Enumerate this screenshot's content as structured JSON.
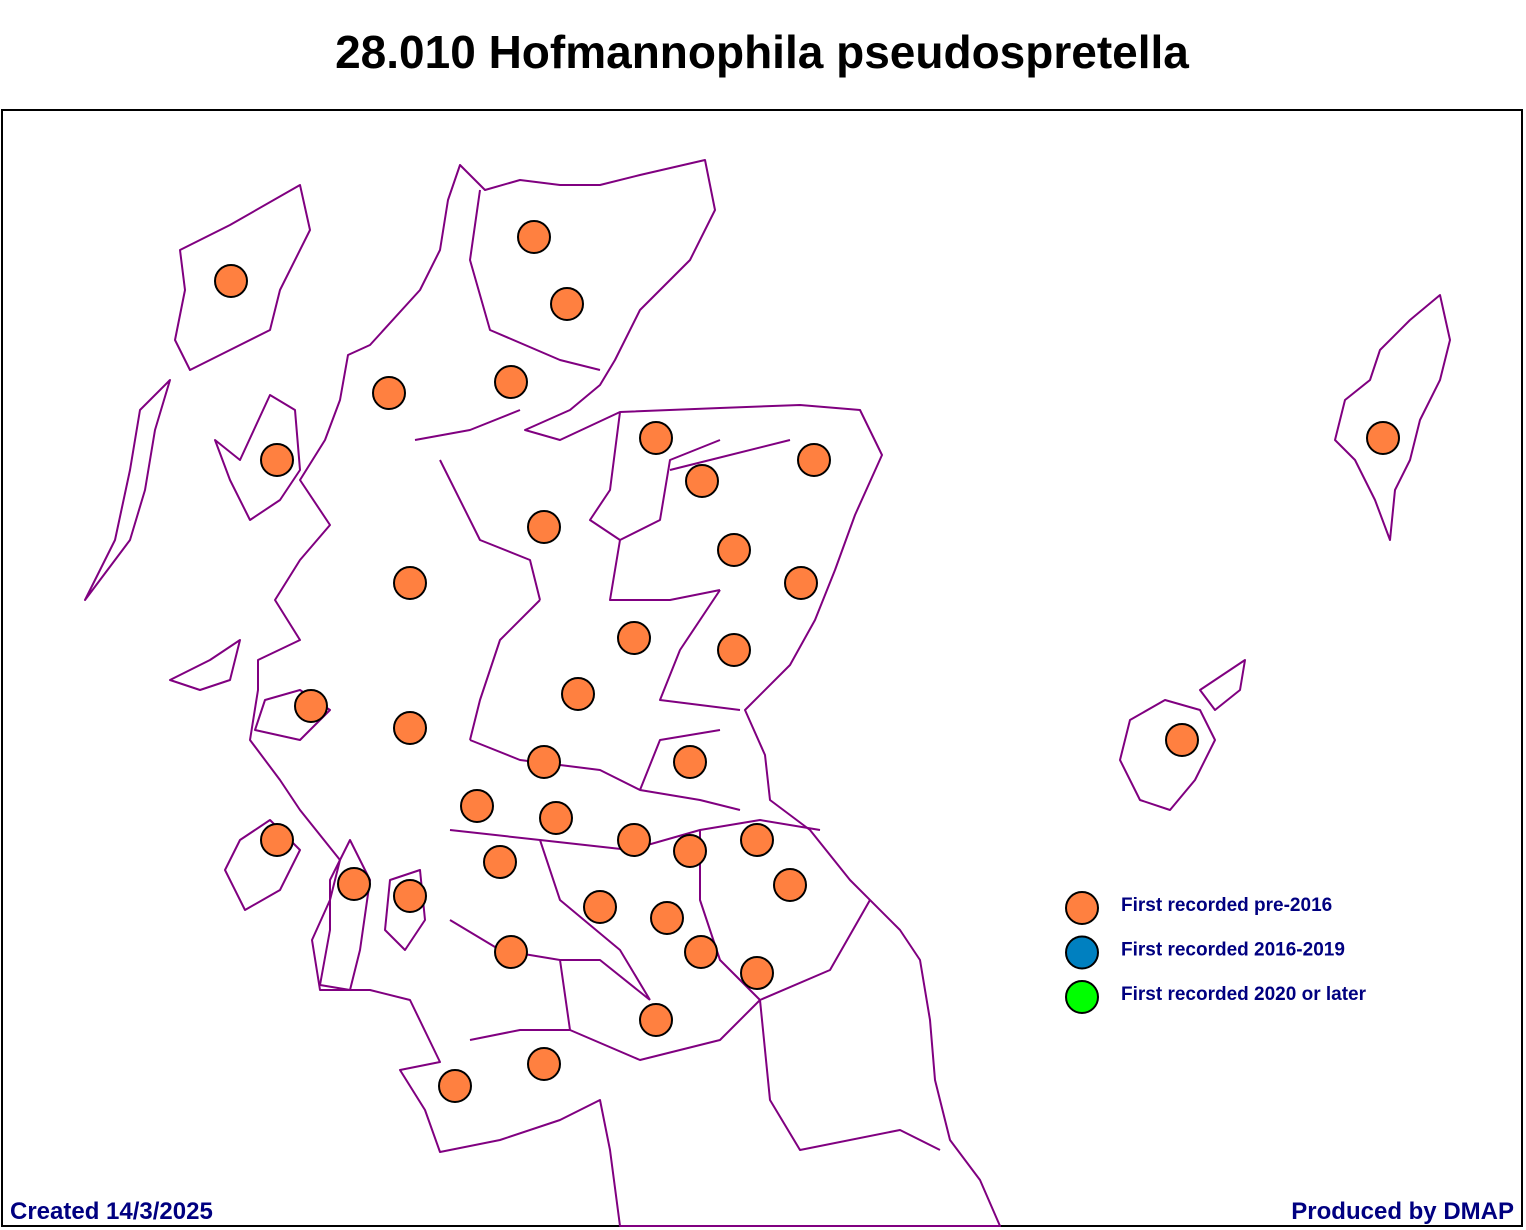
{
  "title": "28.010 Hofmannophila pseudospretella",
  "legend": [
    {
      "label": "First recorded pre-2016",
      "color": "#ff8040"
    },
    {
      "label": "First recorded 2016-2019",
      "color": "#0080c0"
    },
    {
      "label": "First recorded 2020 or later",
      "color": "#00ff00"
    }
  ],
  "footer": {
    "created": "Created 14/3/2025",
    "produced": "Produced by DMAP"
  }
}
